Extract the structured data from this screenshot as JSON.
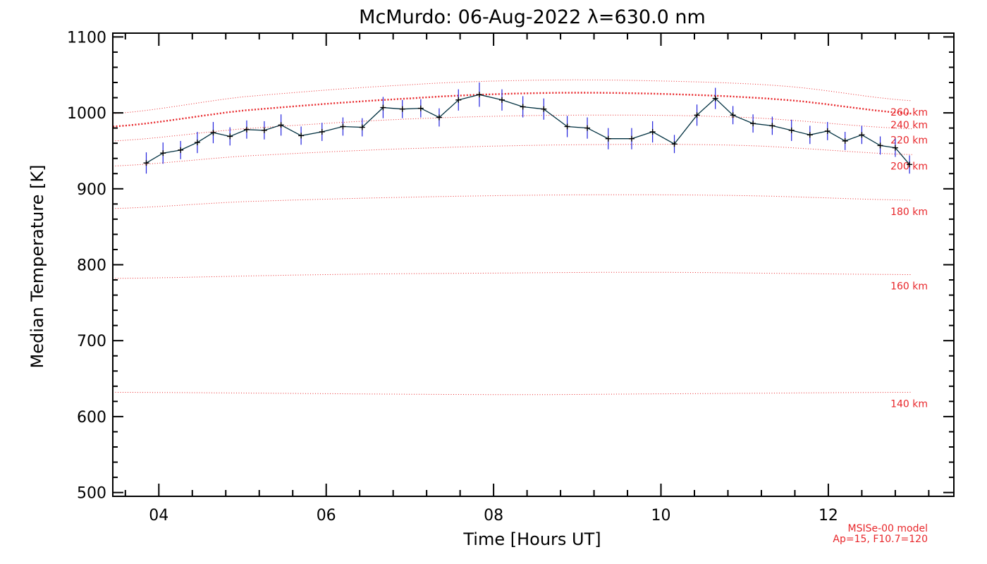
{
  "chart_data": {
    "type": "line",
    "title": "McMurdo: 06-Aug-2022 λ=630.0 nm",
    "xlabel": "Time [Hours UT]",
    "ylabel": "Median Temperature [K]",
    "xlim": [
      3.45,
      13.5
    ],
    "ylim": [
      495,
      1105
    ],
    "xticks": [
      4,
      6,
      8,
      10,
      12
    ],
    "xtick_labels": [
      "04",
      "06",
      "08",
      "10",
      "12"
    ],
    "yticks": [
      500,
      600,
      700,
      800,
      900,
      1000,
      1100
    ],
    "ytick_labels": [
      "500",
      "600",
      "700",
      "800",
      "900",
      "1000",
      "1100"
    ],
    "grid": false,
    "colors": {
      "data_line": "#003040",
      "error_bars": "#2222dd",
      "model": "#e8262a"
    },
    "series": [
      {
        "x": [
          3.85,
          4.05,
          4.26,
          4.46,
          4.65,
          4.85,
          5.05,
          5.26,
          5.46,
          5.7,
          5.95,
          6.2,
          6.43,
          6.68,
          6.91,
          7.13,
          7.35,
          7.58,
          7.83,
          8.1,
          8.35,
          8.6,
          8.88,
          9.12,
          9.37,
          9.65,
          9.9,
          10.16,
          10.43,
          10.65,
          10.86,
          11.1,
          11.33,
          11.56,
          11.78,
          11.99,
          12.2,
          12.4,
          12.62,
          12.8,
          12.97
        ],
        "y": [
          934,
          947,
          951,
          961,
          974,
          969,
          978,
          977,
          984,
          970,
          975,
          982,
          981,
          1007,
          1005,
          1006,
          994,
          1017,
          1024,
          1017,
          1008,
          1005,
          982,
          980,
          966,
          966,
          975,
          959,
          997,
          1019,
          997,
          986,
          983,
          977,
          971,
          976,
          963,
          971,
          957,
          954,
          932
        ],
        "yerr": [
          14,
          14,
          12,
          14,
          14,
          12,
          12,
          12,
          14,
          12,
          12,
          12,
          12,
          14,
          12,
          12,
          12,
          14,
          16,
          14,
          14,
          14,
          14,
          14,
          14,
          14,
          14,
          12,
          14,
          14,
          12,
          12,
          12,
          14,
          12,
          12,
          12,
          12,
          12,
          12,
          12
        ]
      }
    ],
    "model_curves": [
      {
        "label": "140 km",
        "x": [
          3.45,
          8.0,
          10.0,
          13.0
        ],
        "y": [
          632,
          629,
          630,
          632
        ]
      },
      {
        "label": "160 km",
        "x": [
          3.45,
          6.0,
          8.0,
          10.0,
          13.0
        ],
        "y": [
          782,
          787,
          789,
          790,
          787
        ]
      },
      {
        "label": "180 km",
        "x": [
          3.45,
          5.0,
          7.0,
          9.0,
          11.0,
          13.0
        ],
        "y": [
          874,
          883,
          889,
          892,
          891,
          885
        ]
      },
      {
        "label": "200 km",
        "x": [
          3.45,
          5.0,
          7.0,
          9.0,
          11.0,
          13.0
        ],
        "y": [
          930,
          943,
          953,
          958,
          957,
          945
        ]
      },
      {
        "label": "220 km",
        "x": [
          3.45,
          5.0,
          7.0,
          9.0,
          11.0,
          13.0
        ],
        "y": [
          963,
          979,
          992,
          997,
          994,
          979
        ]
      },
      {
        "label": "240 km",
        "x": [
          3.45,
          5.0,
          7.0,
          8.5,
          10.0,
          11.5,
          13.0
        ],
        "y": [
          982,
          1003,
          1019,
          1026,
          1025,
          1017,
          999
        ]
      },
      {
        "label": "260 km",
        "x": [
          3.45,
          5.0,
          7.0,
          8.5,
          10.0,
          11.5,
          13.0
        ],
        "y": [
          999,
          1021,
          1037,
          1043,
          1042,
          1035,
          1016
        ]
      }
    ],
    "model_note_lines": [
      "MSISe-00 model",
      "Ap=15, F10.7=120"
    ]
  }
}
